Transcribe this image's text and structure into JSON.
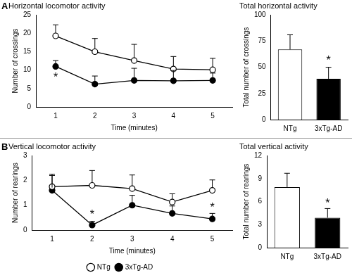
{
  "chart_data": [
    {
      "panel": "A",
      "type": "line",
      "title": "Horizontal locomotor activity",
      "x_label": "Time (minutes)",
      "y_label": "Number of crossings",
      "categories": [
        "1",
        "2",
        "3",
        "4",
        "5"
      ],
      "series": [
        {
          "name": "NTg",
          "color": "#000000",
          "marker": "open_circle",
          "values": [
            19.3,
            15.0,
            12.6,
            10.3,
            10.1
          ],
          "errors": [
            3.0,
            3.6,
            4.4,
            3.4,
            3.1
          ]
        },
        {
          "name": "3xTg-AD",
          "color": "#000000",
          "marker": "circle",
          "values": [
            11.0,
            6.2,
            7.2,
            7.1,
            7.2
          ],
          "errors": [
            1.6,
            2.2,
            3.3,
            2.8,
            2.0
          ]
        }
      ],
      "ylim": [
        0,
        25
      ],
      "yticks": [
        0,
        5,
        10,
        15,
        20,
        25
      ],
      "annotations": [
        {
          "text": "*",
          "x": "1",
          "y": 8
        }
      ]
    },
    {
      "type": "bar",
      "title": "Total horizontal activity",
      "y_label": "Total number of crossings",
      "categories": [
        "NTg",
        "3xTg-AD"
      ],
      "values": [
        67,
        39
      ],
      "errors": [
        14,
        11
      ],
      "colors": [
        "#ffffff",
        "#000000"
      ],
      "ylim": [
        0,
        100
      ],
      "yticks": [
        0,
        25,
        50,
        75,
        100
      ],
      "annotations": [
        {
          "text": "*",
          "x": "3xTg-AD",
          "y": 56
        }
      ]
    },
    {
      "panel": "B",
      "type": "line",
      "title": "Vertical locomotor activity",
      "x_label": "Time (minutes)",
      "y_label": "Number of rearings",
      "categories": [
        "1",
        "2",
        "3",
        "4",
        "5"
      ],
      "series": [
        {
          "name": "NTg",
          "color": "#000000",
          "marker": "open_circle",
          "values": [
            1.75,
            1.8,
            1.67,
            1.13,
            1.6
          ],
          "errors": [
            0.5,
            0.6,
            0.55,
            0.33,
            0.42
          ]
        },
        {
          "name": "3xTg-AD",
          "color": "#000000",
          "marker": "circle",
          "values": [
            1.6,
            0.2,
            1.0,
            0.67,
            0.45
          ],
          "errors": [
            0.6,
            0.15,
            0.4,
            0.3,
            0.22
          ]
        }
      ],
      "ylim": [
        0,
        3
      ],
      "yticks": [
        0,
        1,
        2,
        3
      ],
      "legend": "bottom",
      "annotations": [
        {
          "text": "*",
          "x": "2",
          "y": 0.6
        },
        {
          "text": "*",
          "x": "5",
          "y": 0.9
        }
      ]
    },
    {
      "type": "bar",
      "title": "Total vertical activity",
      "y_label": "Total number of rearings",
      "categories": [
        "NTg",
        "3xTg-AD"
      ],
      "values": [
        7.9,
        3.9
      ],
      "errors": [
        1.8,
        1.2
      ],
      "colors": [
        "#ffffff",
        "#000000"
      ],
      "ylim": [
        0,
        12
      ],
      "yticks": [
        0,
        3,
        6,
        9,
        12
      ],
      "annotations": [
        {
          "text": "*",
          "x": "3xTg-AD",
          "y": 5.7
        }
      ]
    }
  ]
}
